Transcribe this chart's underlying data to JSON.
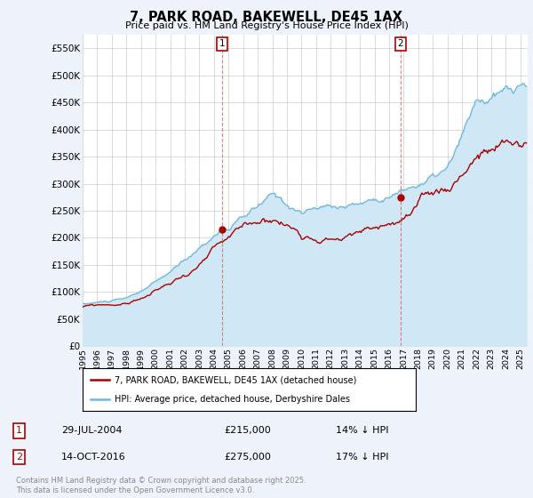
{
  "title": "7, PARK ROAD, BAKEWELL, DE45 1AX",
  "subtitle": "Price paid vs. HM Land Registry's House Price Index (HPI)",
  "ylim": [
    0,
    575000
  ],
  "yticks": [
    0,
    50000,
    100000,
    150000,
    200000,
    250000,
    300000,
    350000,
    400000,
    450000,
    500000,
    550000
  ],
  "xlim_start": 1995.0,
  "xlim_end": 2025.5,
  "hpi_color": "#6fb8e0",
  "hpi_fill_color": "#d0e8f5",
  "sale_color": "#aa0000",
  "marker1_x": 2004.58,
  "marker1_y": 215000,
  "marker2_x": 2016.79,
  "marker2_y": 275000,
  "legend_line1": "7, PARK ROAD, BAKEWELL, DE45 1AX (detached house)",
  "legend_line2": "HPI: Average price, detached house, Derbyshire Dales",
  "annotation1_date": "29-JUL-2004",
  "annotation1_price": "£215,000",
  "annotation1_hpi": "14% ↓ HPI",
  "annotation2_date": "14-OCT-2016",
  "annotation2_price": "£275,000",
  "annotation2_hpi": "17% ↓ HPI",
  "footnote": "Contains HM Land Registry data © Crown copyright and database right 2025.\nThis data is licensed under the Open Government Licence v3.0.",
  "background_color": "#eef2fb",
  "plot_bg_color": "#ffffff",
  "grid_color": "#cccccc",
  "vline_color": "#e06060"
}
